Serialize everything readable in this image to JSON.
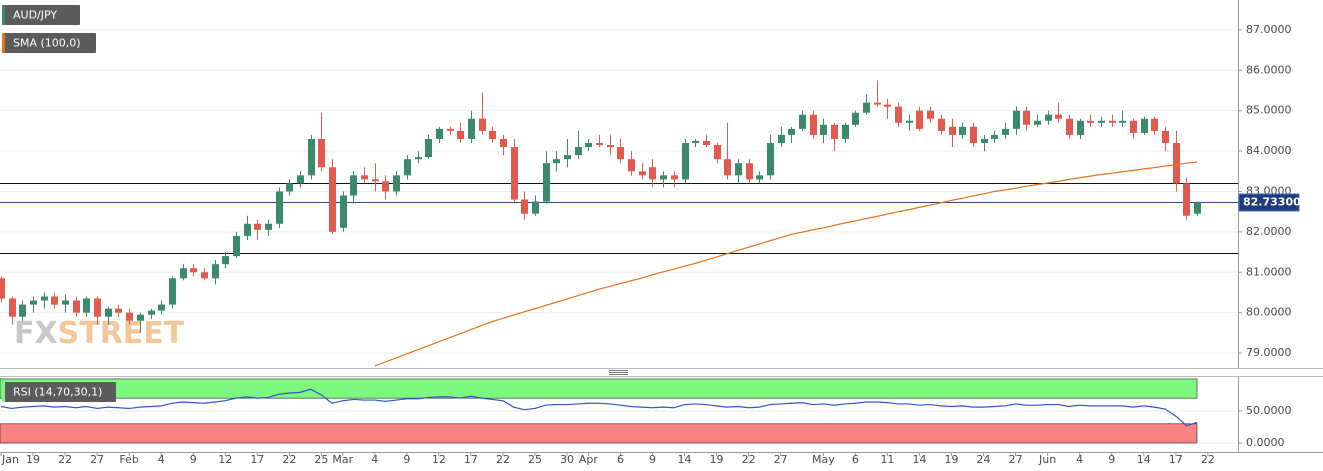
{
  "chart_data": [
    {
      "type": "candlestick",
      "categories": [
        "Jan",
        null,
        null,
        "19",
        null,
        null,
        "22",
        null,
        null,
        "27",
        null,
        null,
        "Feb",
        null,
        null,
        "4",
        null,
        null,
        "9",
        null,
        null,
        "12",
        null,
        null,
        "17",
        null,
        null,
        "22",
        null,
        null,
        "25",
        null,
        "Mar",
        null,
        null,
        "4",
        null,
        null,
        "9",
        null,
        null,
        "12",
        null,
        null,
        "17",
        null,
        null,
        "22",
        null,
        null,
        "25",
        null,
        null,
        "30",
        null,
        "Apr",
        null,
        null,
        "6",
        null,
        null,
        "9",
        null,
        null,
        "14",
        null,
        null,
        "19",
        null,
        null,
        "22",
        null,
        null,
        "27",
        null,
        null,
        null,
        "May",
        null,
        null,
        "6",
        null,
        null,
        "11",
        null,
        null,
        "14",
        null,
        null,
        "19",
        null,
        null,
        "24",
        null,
        null,
        "27",
        null,
        null,
        "Jun",
        null,
        null,
        "4",
        null,
        null,
        "9",
        null,
        null,
        "14",
        null,
        null,
        "17",
        null,
        null,
        "22"
      ],
      "series": [
        {
          "name": "AUD/JPY",
          "up_color": "#3b8a6c",
          "down_color": "#e05a4e",
          "open": [
            80.85,
            80.35,
            79.9,
            80.2,
            80.3,
            80.4,
            80.2,
            80.3,
            80.0,
            80.35,
            79.9,
            80.1,
            80.0,
            79.8,
            79.95,
            80.05,
            80.2,
            80.85,
            81.1,
            81.0,
            80.85,
            81.2,
            81.4,
            81.9,
            82.2,
            82.05,
            82.2,
            83.0,
            83.2,
            83.4,
            84.3,
            83.6,
            82.1,
            82.9,
            83.4,
            83.3,
            83.25,
            83.0,
            83.4,
            83.8,
            83.85,
            84.3,
            84.55,
            84.5,
            84.3,
            84.8,
            84.5,
            84.3,
            84.1,
            82.8,
            82.45,
            82.75,
            83.7,
            83.8,
            83.9,
            84.1,
            84.2,
            84.15,
            84.1,
            83.8,
            83.5,
            83.6,
            83.3,
            83.4,
            83.3,
            84.2,
            84.25,
            84.15,
            83.8,
            83.4,
            83.7,
            83.3,
            83.4,
            84.2,
            84.4,
            84.55,
            84.9,
            84.4,
            84.65,
            84.3,
            84.65,
            84.95,
            85.2,
            85.15,
            85.1,
            84.7,
            85.0,
            85.0,
            84.8,
            84.6,
            84.4,
            84.6,
            84.2,
            84.3,
            84.4,
            84.55,
            85.0,
            84.65,
            84.75,
            84.9,
            84.8,
            84.4,
            84.75,
            84.7,
            84.75,
            84.7,
            84.75,
            84.45,
            84.8,
            84.5,
            84.2,
            83.2,
            82.45,
            null
          ],
          "high": [
            80.9,
            80.4,
            80.3,
            80.4,
            80.5,
            80.5,
            80.45,
            80.4,
            80.4,
            80.4,
            80.15,
            80.2,
            80.1,
            80.0,
            80.1,
            80.3,
            80.9,
            81.2,
            81.2,
            81.1,
            81.3,
            81.5,
            82.0,
            82.4,
            82.3,
            82.3,
            83.1,
            83.3,
            83.5,
            84.4,
            84.95,
            83.8,
            83.0,
            83.5,
            83.6,
            83.7,
            83.4,
            83.5,
            83.9,
            84.0,
            84.4,
            84.6,
            84.6,
            84.7,
            85.0,
            85.45,
            84.6,
            84.4,
            84.3,
            83.0,
            82.9,
            84.0,
            84.0,
            84.3,
            84.5,
            84.3,
            84.4,
            84.4,
            84.3,
            84.0,
            83.7,
            83.8,
            83.5,
            83.5,
            84.3,
            84.3,
            84.4,
            84.2,
            84.7,
            83.8,
            83.8,
            83.5,
            84.4,
            84.6,
            84.6,
            85.0,
            85.0,
            84.8,
            84.7,
            84.7,
            85.0,
            85.4,
            85.75,
            85.3,
            85.2,
            84.9,
            85.1,
            85.1,
            84.9,
            84.8,
            84.7,
            84.7,
            84.4,
            84.5,
            84.7,
            85.1,
            85.1,
            84.9,
            85.0,
            85.2,
            84.9,
            84.8,
            84.9,
            84.85,
            84.9,
            85.0,
            84.8,
            84.85,
            84.85,
            84.6,
            84.5,
            83.35,
            82.75,
            null
          ],
          "low": [
            80.25,
            79.7,
            79.8,
            80.0,
            80.1,
            80.1,
            80.0,
            79.9,
            79.9,
            79.7,
            79.7,
            79.9,
            79.7,
            79.5,
            79.85,
            79.95,
            80.1,
            80.8,
            80.9,
            80.8,
            80.7,
            81.1,
            81.35,
            81.8,
            81.8,
            81.9,
            82.1,
            82.9,
            83.1,
            83.3,
            83.5,
            81.95,
            82.0,
            82.7,
            83.2,
            83.0,
            82.8,
            82.9,
            83.3,
            83.7,
            83.8,
            84.2,
            84.4,
            84.2,
            84.2,
            84.4,
            84.2,
            83.9,
            82.7,
            82.3,
            82.4,
            82.7,
            83.5,
            83.6,
            83.8,
            84.0,
            84.1,
            83.9,
            83.7,
            83.4,
            83.3,
            83.1,
            83.1,
            83.1,
            83.2,
            84.1,
            84.1,
            83.7,
            83.3,
            83.2,
            83.2,
            83.2,
            83.3,
            84.1,
            84.2,
            84.5,
            84.3,
            84.2,
            84.0,
            84.2,
            84.6,
            84.9,
            85.1,
            84.8,
            84.6,
            84.5,
            84.5,
            84.7,
            84.4,
            84.1,
            84.3,
            84.1,
            84.0,
            84.2,
            84.3,
            84.4,
            84.5,
            84.6,
            84.65,
            84.7,
            84.3,
            84.3,
            84.6,
            84.6,
            84.6,
            84.6,
            84.3,
            84.4,
            84.4,
            84.0,
            83.0,
            82.3,
            82.4,
            null
          ],
          "close": [
            80.35,
            79.9,
            80.2,
            80.3,
            80.4,
            80.2,
            80.3,
            80.0,
            80.35,
            79.9,
            80.1,
            80.0,
            79.8,
            79.95,
            80.05,
            80.2,
            80.85,
            81.1,
            81.0,
            80.85,
            81.2,
            81.4,
            81.9,
            82.2,
            82.05,
            82.2,
            83.0,
            83.2,
            83.4,
            84.3,
            83.6,
            82.0,
            82.9,
            83.4,
            83.3,
            83.25,
            83.0,
            83.4,
            83.8,
            83.85,
            84.3,
            84.55,
            84.5,
            84.3,
            84.8,
            84.5,
            84.3,
            84.1,
            82.8,
            82.45,
            82.75,
            83.7,
            83.8,
            83.9,
            84.1,
            84.2,
            84.15,
            84.1,
            83.8,
            83.5,
            83.4,
            83.3,
            83.4,
            83.3,
            84.2,
            84.25,
            84.15,
            83.8,
            83.4,
            83.7,
            83.3,
            83.4,
            84.2,
            84.4,
            84.55,
            84.9,
            84.4,
            84.65,
            84.3,
            84.65,
            84.95,
            85.2,
            85.15,
            85.1,
            84.7,
            84.75,
            84.55,
            84.8,
            84.5,
            84.4,
            84.6,
            84.2,
            84.3,
            84.4,
            84.55,
            85.0,
            84.65,
            84.75,
            84.9,
            84.8,
            84.4,
            84.75,
            84.7,
            84.75,
            84.7,
            84.75,
            84.45,
            84.8,
            84.5,
            84.2,
            83.2,
            82.4,
            82.73,
            null
          ]
        },
        {
          "name": "SMA (100,0)",
          "type": "line",
          "color": "#e8701a",
          "values": [
            null,
            null,
            null,
            null,
            null,
            null,
            null,
            null,
            null,
            null,
            null,
            null,
            null,
            null,
            null,
            null,
            null,
            null,
            null,
            null,
            null,
            null,
            null,
            null,
            null,
            null,
            null,
            null,
            null,
            null,
            null,
            null,
            null,
            null,
            null,
            78.68,
            78.78,
            78.88,
            78.98,
            79.08,
            79.18,
            79.28,
            79.38,
            79.48,
            79.58,
            79.68,
            79.78,
            79.86,
            79.94,
            80.02,
            80.1,
            80.18,
            80.26,
            80.34,
            80.42,
            80.5,
            80.58,
            80.65,
            80.72,
            80.79,
            80.86,
            80.94,
            81.01,
            81.08,
            81.15,
            81.22,
            81.3,
            81.38,
            81.46,
            81.54,
            81.62,
            81.7,
            81.78,
            81.86,
            81.94,
            81.99,
            82.05,
            82.1,
            82.16,
            82.22,
            82.27,
            82.33,
            82.38,
            82.44,
            82.5,
            82.55,
            82.61,
            82.66,
            82.72,
            82.78,
            82.83,
            82.89,
            82.94,
            83.0,
            83.04,
            83.08,
            83.13,
            83.17,
            83.21,
            83.25,
            83.3,
            83.34,
            83.38,
            83.42,
            83.45,
            83.49,
            83.52,
            83.56,
            83.59,
            83.63,
            83.66,
            83.7,
            83.73,
            null
          ]
        }
      ],
      "ylim": [
        78.63,
        87.74
      ],
      "yticks": [
        {
          "value": 79,
          "label": "79.0000"
        },
        {
          "value": 80,
          "label": "80.0000"
        },
        {
          "value": 81,
          "label": "81.0000"
        },
        {
          "value": 82,
          "label": "82.0000"
        },
        {
          "value": 83,
          "label": "83.0000"
        },
        {
          "value": 84,
          "label": "84.0000"
        },
        {
          "value": 85,
          "label": "85.0000"
        },
        {
          "value": 86,
          "label": "86.0000"
        },
        {
          "value": 87,
          "label": "87.0000"
        }
      ],
      "grid": true,
      "hlines": [
        83.21,
        81.48
      ],
      "last_price": {
        "value": 82.733,
        "label": "82.73300"
      },
      "watermark": [
        "FX",
        "STREET"
      ]
    },
    {
      "type": "line",
      "series": [
        {
          "name": "RSI (14,70,30,1)",
          "color": "#2f55d4",
          "values": [
            57,
            54,
            56,
            57,
            58,
            56,
            57,
            55,
            57,
            54,
            56,
            55,
            54,
            56,
            57,
            58,
            62,
            64,
            63,
            62,
            64,
            66,
            70,
            72,
            70,
            71,
            76,
            78,
            79,
            84,
            75,
            62,
            66,
            68,
            67,
            67,
            65,
            67,
            69,
            69,
            71,
            72,
            72,
            70,
            73,
            70,
            68,
            66,
            56,
            52,
            54,
            59,
            60,
            60,
            61,
            62,
            62,
            61,
            59,
            57,
            56,
            55,
            56,
            55,
            60,
            61,
            60,
            58,
            56,
            57,
            55,
            56,
            60,
            61,
            62,
            63,
            60,
            61,
            59,
            61,
            62,
            64,
            64,
            63,
            61,
            61,
            59,
            60,
            58,
            57,
            58,
            56,
            56,
            57,
            58,
            61,
            59,
            59,
            60,
            60,
            57,
            59,
            58,
            58,
            58,
            58,
            56,
            58,
            56,
            53,
            42,
            27,
            32,
            null
          ]
        }
      ],
      "ylim": [
        -14,
        103
      ],
      "yticks": [
        {
          "value": 0,
          "label": "0.0000"
        },
        {
          "value": 50,
          "label": "50.0000"
        }
      ],
      "grid": true,
      "bands": [
        {
          "from": 70,
          "to": 100,
          "color": "#7df77d"
        },
        {
          "from": 0,
          "to": 30,
          "color": "#f98282"
        }
      ]
    }
  ]
}
